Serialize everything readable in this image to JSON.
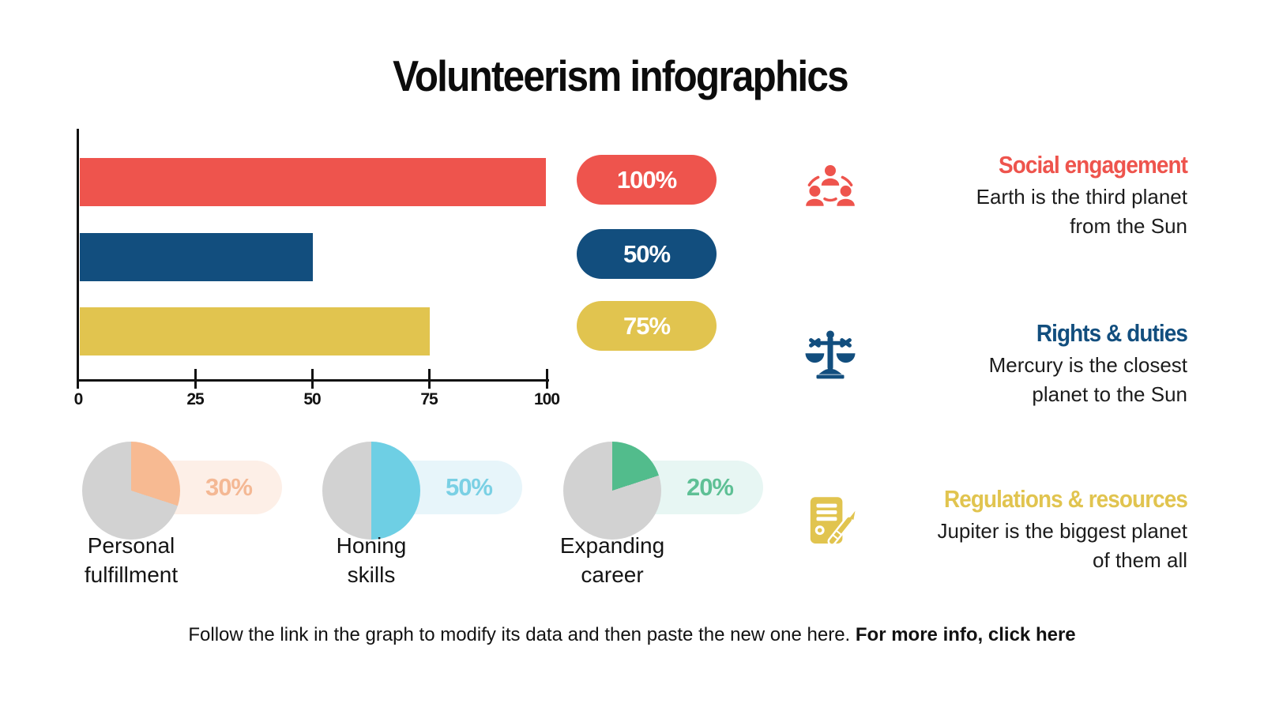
{
  "title": "Volunteerism infographics",
  "colors": {
    "red": "#EE544D",
    "blue": "#124E7E",
    "yellow": "#E1C44F",
    "pie_gray": "#D2D2D2",
    "axis": "#121212"
  },
  "bar_chart": {
    "axis_ticks": [
      "0",
      "25",
      "50",
      "75",
      "100"
    ],
    "bars": [
      {
        "name": "social-engagement",
        "value": 100,
        "label": "100%",
        "color": "#EE544D"
      },
      {
        "name": "rights-and-duties",
        "value": 50,
        "label": "50%",
        "color": "#124E7E"
      },
      {
        "name": "regulations-and-resources",
        "value": 75,
        "label": "75%",
        "color": "#E1C44F"
      }
    ]
  },
  "pies": [
    {
      "value": 30,
      "label": "30%",
      "slice_color": "#F7BA92",
      "pill_bg": "#FDEFE7",
      "text_color": "#F4B894",
      "caption": [
        "Personal",
        "fulfillment"
      ]
    },
    {
      "value": 50,
      "label": "50%",
      "slice_color": "#6ECFE4",
      "pill_bg": "#E7F5FA",
      "text_color": "#7AD0E4",
      "caption": [
        "Honing",
        "skills"
      ]
    },
    {
      "value": 20,
      "label": "20%",
      "slice_color": "#52BC8C",
      "pill_bg": "#E7F6F3",
      "text_color": "#5EC095",
      "caption": [
        "Expanding",
        "career"
      ]
    }
  ],
  "legend": {
    "rows": [
      {
        "title": "Social engagement",
        "color": "#EE544D",
        "icon": "people-network-icon",
        "lines": [
          "Earth is the third planet",
          "from the Sun"
        ]
      },
      {
        "title": "Rights & duties",
        "color": "#124E7E",
        "icon": "justice-scales-icon",
        "lines": [
          "Mercury is the closest",
          "planet to the Sun"
        ]
      },
      {
        "title": "Regulations & resources",
        "color": "#E1C44F",
        "icon": "document-pen-icon",
        "lines": [
          "Jupiter is the biggest planet",
          "of them all"
        ]
      }
    ]
  },
  "footer": {
    "text": "Follow the link in the graph to modify its data and then paste the new one here. ",
    "link_text": "For more info, click here"
  },
  "chart_data": [
    {
      "type": "bar",
      "orientation": "horizontal",
      "categories": [
        "Social engagement",
        "Rights & duties",
        "Regulations & resources"
      ],
      "values": [
        100,
        50,
        75
      ],
      "value_labels": [
        "100%",
        "50%",
        "75%"
      ],
      "colors": [
        "#EE544D",
        "#124E7E",
        "#E1C44F"
      ],
      "xlim": [
        0,
        100
      ],
      "x_ticks": [
        0,
        25,
        50,
        75,
        100
      ],
      "grid": false,
      "legend_position": "right"
    },
    {
      "type": "pie",
      "title": "Personal fulfillment",
      "labels": [
        "Personal fulfillment",
        "rest"
      ],
      "values": [
        30,
        70
      ],
      "colors": [
        "#F7BA92",
        "#D2D2D2"
      ],
      "data_label": "30%"
    },
    {
      "type": "pie",
      "title": "Honing skills",
      "labels": [
        "Honing skills",
        "rest"
      ],
      "values": [
        50,
        50
      ],
      "colors": [
        "#6ECFE4",
        "#D2D2D2"
      ],
      "data_label": "50%"
    },
    {
      "type": "pie",
      "title": "Expanding career",
      "labels": [
        "Expanding career",
        "rest"
      ],
      "values": [
        20,
        80
      ],
      "colors": [
        "#52BC8C",
        "#D2D2D2"
      ],
      "data_label": "20%"
    }
  ]
}
